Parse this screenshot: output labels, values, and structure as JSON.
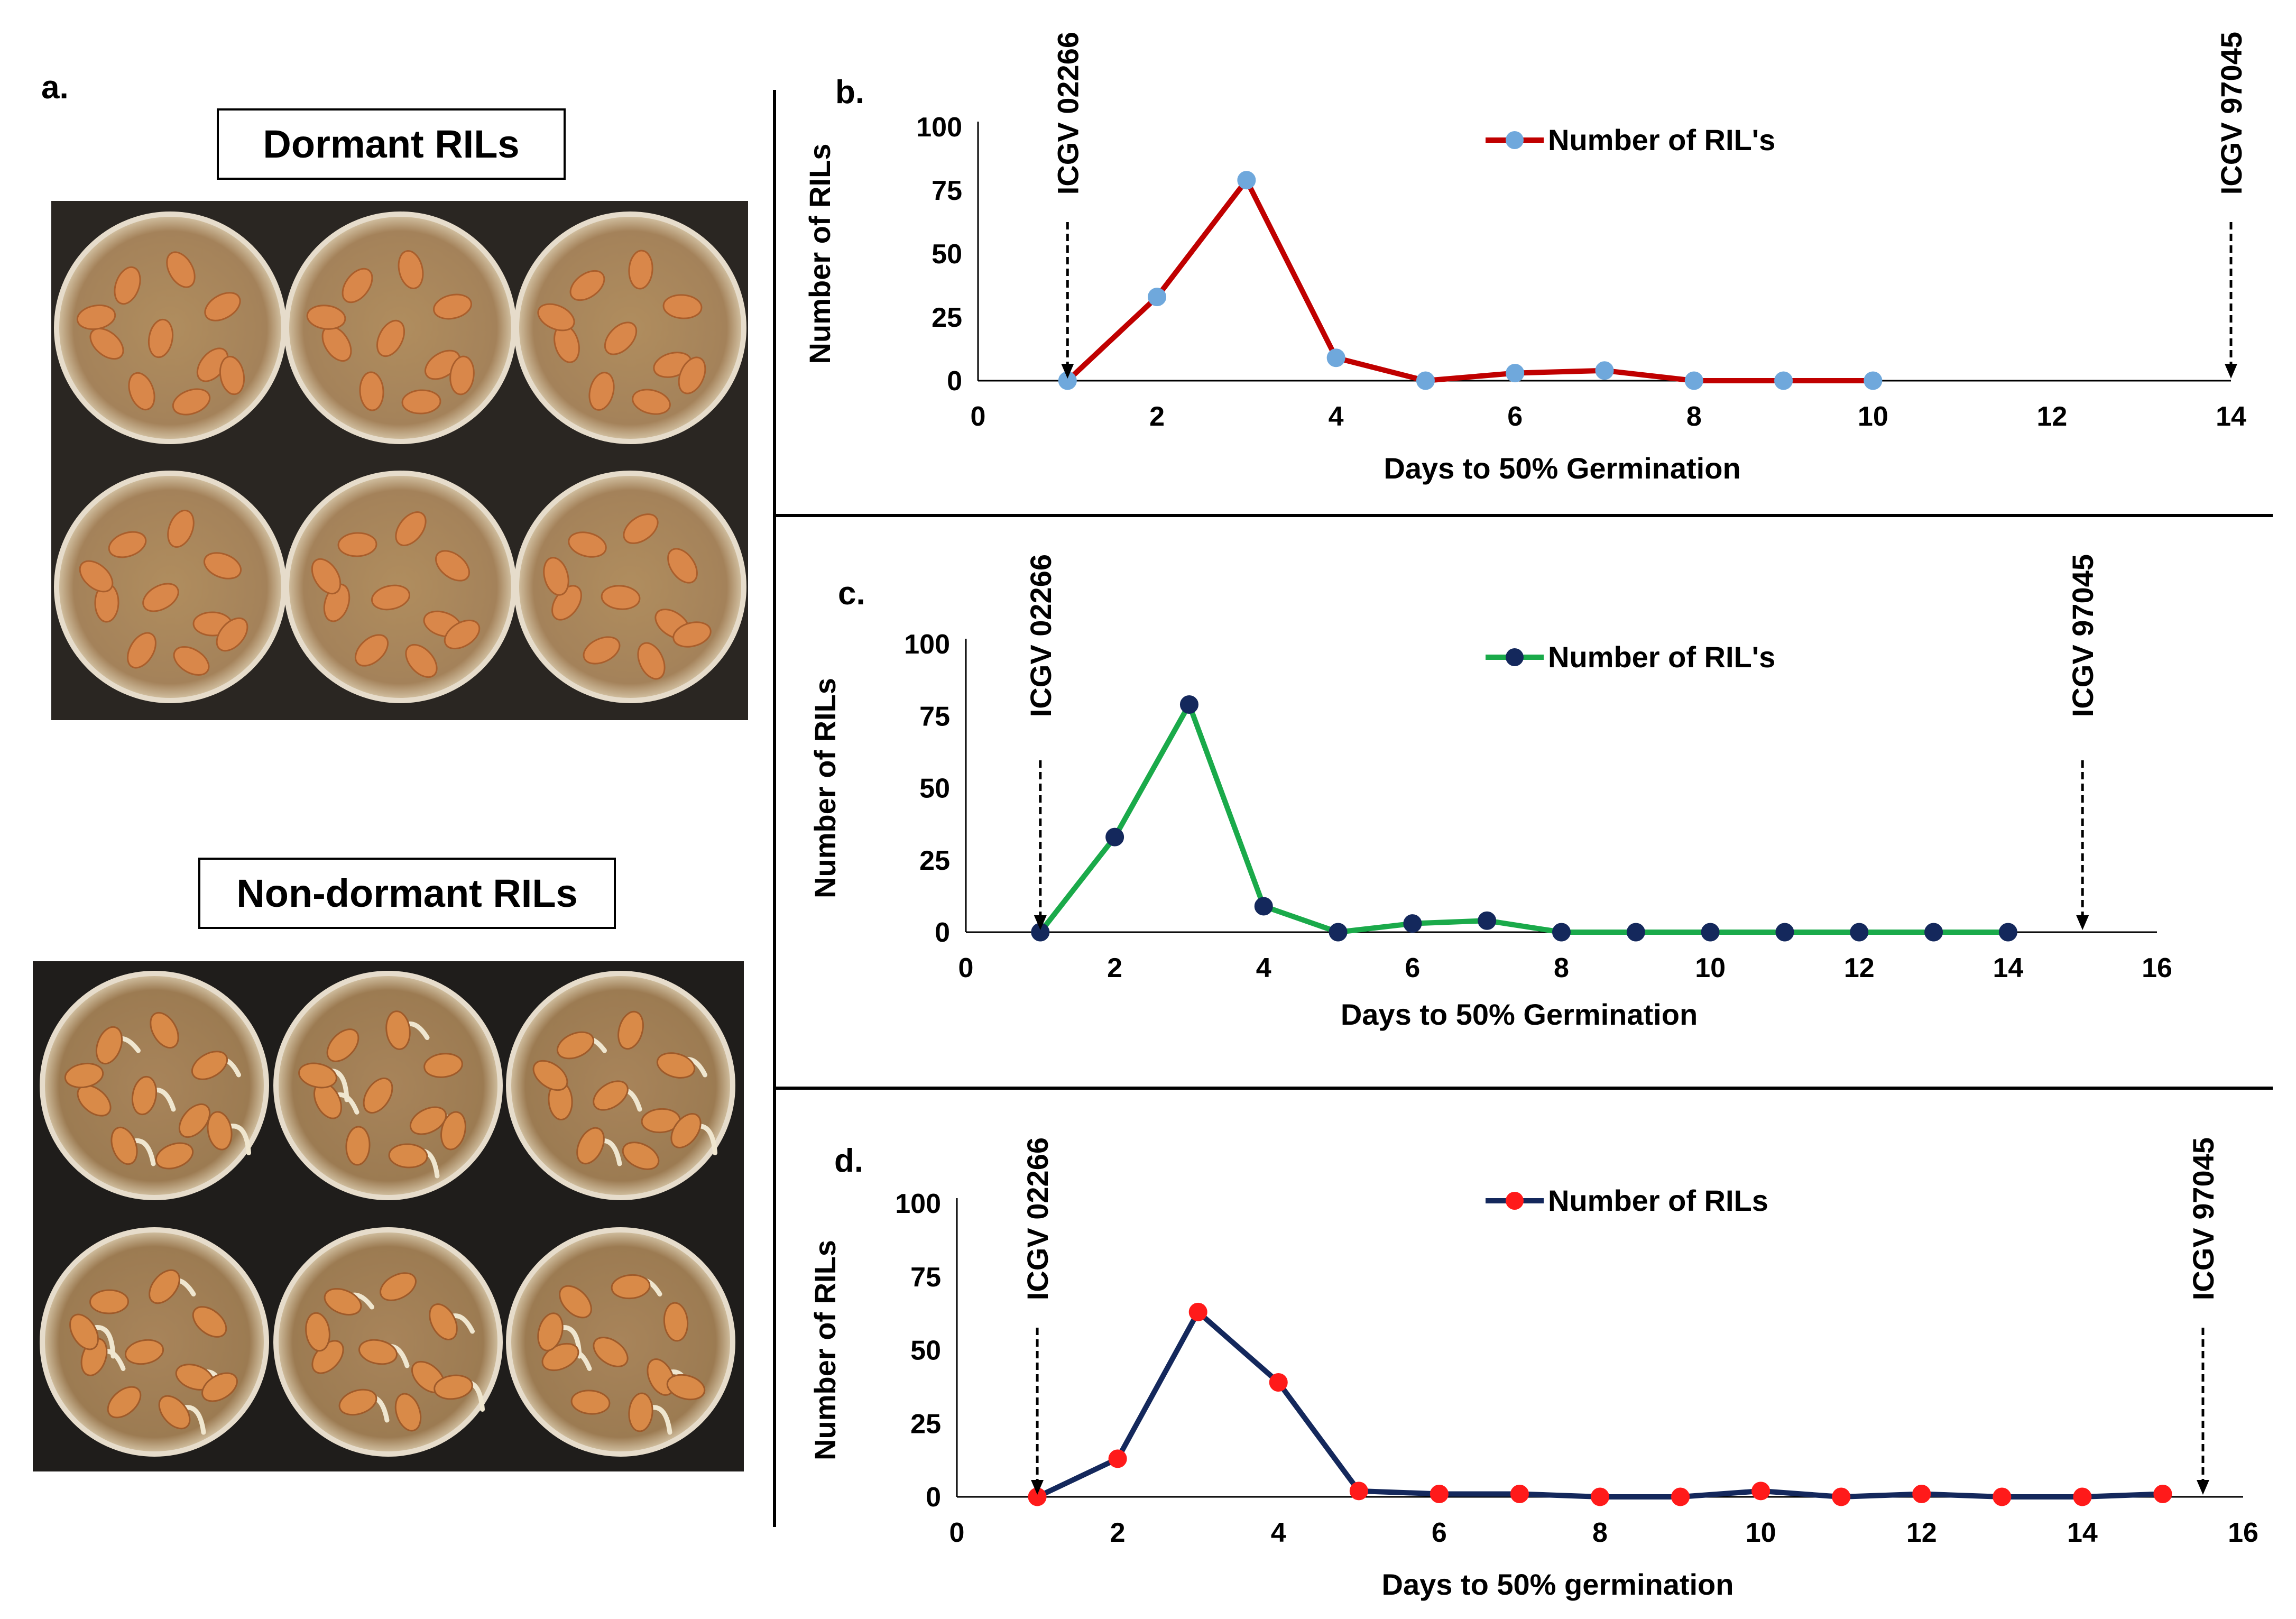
{
  "panel_a": {
    "letter": "a.",
    "dormant_label": "Dormant RILs",
    "nondormant_label": "Non-dormant RILs"
  },
  "chart_data": [
    {
      "type": "line",
      "panel": "b.",
      "x": [
        1,
        2,
        3,
        4,
        5,
        6,
        7,
        8,
        9,
        10
      ],
      "series": [
        {
          "name": "Number of RIL's",
          "values": [
            0,
            33,
            79,
            9,
            0,
            3,
            4,
            0,
            0,
            0
          ],
          "line_color": "#c00000",
          "marker_color": "#6fa8dc"
        }
      ],
      "xlabel": "Days to 50% Germination",
      "ylabel": "Number of RILs",
      "xlim": [
        0,
        14
      ],
      "ylim": [
        0,
        100
      ],
      "xticks": [
        0,
        2,
        4,
        6,
        8,
        10,
        12,
        14
      ],
      "yticks": [
        0,
        25,
        50,
        75,
        100
      ],
      "annotations": [
        {
          "label": "ICGV 02266",
          "x": 1
        },
        {
          "label": "ICGV 97045",
          "x": 14
        }
      ],
      "legend": "top-center"
    },
    {
      "type": "line",
      "panel": "c.",
      "x": [
        1,
        2,
        3,
        4,
        5,
        6,
        7,
        8,
        9,
        10,
        11,
        12,
        13,
        14
      ],
      "series": [
        {
          "name": "Number of RIL's",
          "values": [
            0,
            33,
            79,
            9,
            0,
            3,
            4,
            0,
            0,
            0,
            0,
            0,
            0,
            0
          ],
          "line_color": "#1aaa4a",
          "marker_color": "#14285c"
        }
      ],
      "xlabel": "Days to 50% Germination",
      "ylabel": "Number of RILs",
      "xlim": [
        0,
        16
      ],
      "ylim": [
        0,
        100
      ],
      "xticks": [
        0,
        2,
        4,
        6,
        8,
        10,
        12,
        14,
        16
      ],
      "yticks": [
        0,
        25,
        50,
        75,
        100
      ],
      "annotations": [
        {
          "label": "ICGV 02266",
          "x": 1
        },
        {
          "label": "ICGV 97045",
          "x": 15
        }
      ],
      "legend": "top-center"
    },
    {
      "type": "line",
      "panel": "d.",
      "x": [
        1,
        2,
        3,
        4,
        5,
        6,
        7,
        8,
        9,
        10,
        11,
        12,
        13,
        14,
        15
      ],
      "series": [
        {
          "name": "Number of RILs",
          "values": [
            0,
            13,
            63,
            39,
            2,
            1,
            1,
            0,
            0,
            2,
            0,
            1,
            0,
            0,
            1
          ],
          "line_color": "#14285c",
          "marker_color": "#ff1a1a"
        }
      ],
      "xlabel": "Days to 50% germination",
      "ylabel": "Number of RILs",
      "xlim": [
        0,
        16
      ],
      "ylim": [
        0,
        100
      ],
      "xticks": [
        0,
        2,
        4,
        6,
        8,
        10,
        12,
        14,
        16
      ],
      "yticks": [
        0,
        25,
        50,
        75,
        100
      ],
      "annotations": [
        {
          "label": "ICGV 02266",
          "x": 1
        },
        {
          "label": "ICGV 97045",
          "x": 15.5
        }
      ],
      "legend": "top-center"
    }
  ]
}
